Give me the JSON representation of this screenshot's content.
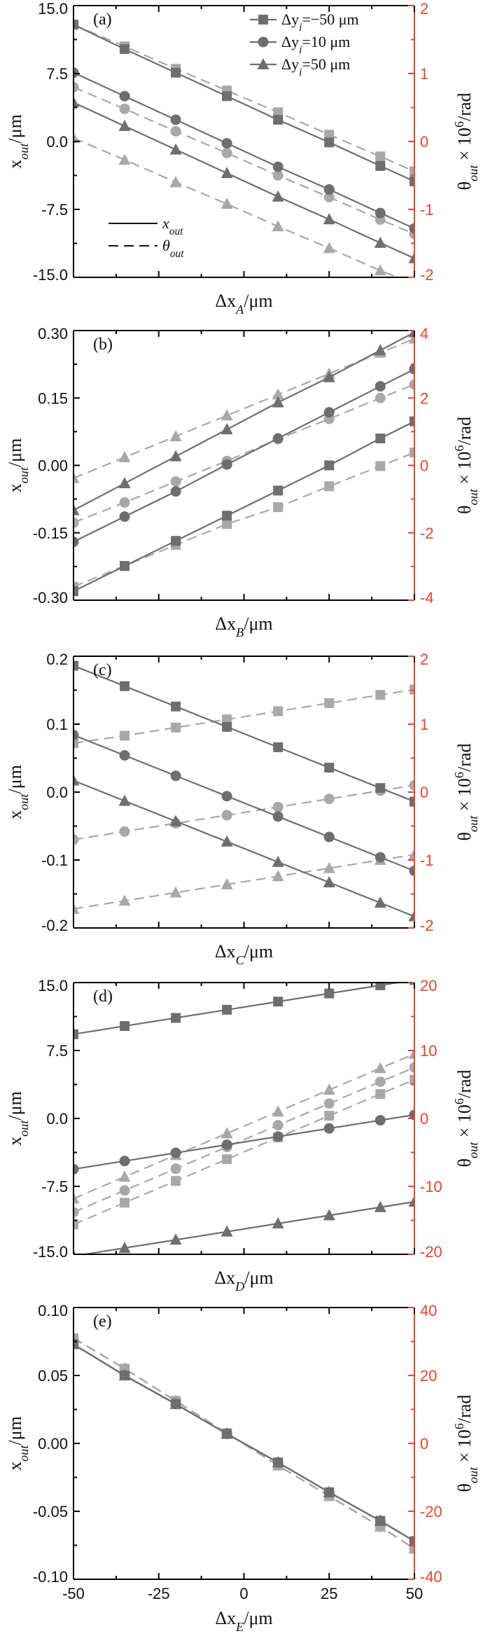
{
  "colors": {
    "x_series": "#6e6e6e",
    "theta_series": "#a8a8a8",
    "left_axis": "#000000",
    "right_axis": "#e8442c"
  },
  "legend": {
    "series": [
      {
        "marker": "square",
        "label": "Δy_i=−50 μm"
      },
      {
        "marker": "circle",
        "label": "Δy_i=10 μm"
      },
      {
        "marker": "triangle",
        "label": "Δy_i=50 μm"
      }
    ],
    "styles": [
      {
        "line": "solid",
        "label": "x_out"
      },
      {
        "line": "dashed",
        "label": "θ_out"
      }
    ]
  },
  "chart_data": [
    {
      "type": "line",
      "panel_label": "(a)",
      "xlabel": "Δx_A/μm",
      "ylabel": "x_out/μm",
      "y2label": "θ_out × 10^6/rad",
      "xlim": [
        -50,
        50
      ],
      "ylim": [
        -15,
        15
      ],
      "y2lim": [
        -2,
        2
      ],
      "yticks": [
        "-15.0",
        "-7.5",
        "0.0",
        "7.5",
        "15.0"
      ],
      "y2ticks": [
        "-2",
        "-1",
        "0",
        "1",
        "2"
      ],
      "xticks": [],
      "x": [
        -50,
        -35,
        -20,
        -5,
        10,
        25,
        40,
        50
      ],
      "series": [
        {
          "name": "Δy_i=−50 μm",
          "marker": "square",
          "x_out": [
            12.9,
            10.2,
            7.6,
            5.0,
            2.4,
            -0.1,
            -2.7,
            -4.4
          ],
          "theta_out": [
            1.72,
            1.4,
            1.07,
            0.75,
            0.43,
            0.1,
            -0.22,
            -0.44
          ]
        },
        {
          "name": "Δy_i=10 μm",
          "marker": "circle",
          "x_out": [
            7.6,
            5.0,
            2.4,
            -0.2,
            -2.8,
            -5.3,
            -7.9,
            -9.6
          ],
          "theta_out": [
            0.8,
            0.48,
            0.15,
            -0.17,
            -0.5,
            -0.82,
            -1.15,
            -1.36
          ]
        },
        {
          "name": "Δy_i=50 μm",
          "marker": "triangle",
          "x_out": [
            4.3,
            1.7,
            -0.9,
            -3.5,
            -6.1,
            -8.6,
            -11.2,
            -12.9
          ],
          "theta_out": [
            0.05,
            -0.27,
            -0.6,
            -0.92,
            -1.25,
            -1.57,
            -1.9,
            -2.1
          ]
        }
      ]
    },
    {
      "type": "line",
      "panel_label": "(b)",
      "xlabel": "Δx_B/μm",
      "ylabel": "x_out/μm",
      "y2label": "θ_out × 10^6/rad",
      "xlim": [
        -50,
        50
      ],
      "ylim": [
        -0.3,
        0.3
      ],
      "y2lim": [
        -4,
        4
      ],
      "yticks": [
        "-0.30",
        "-0.15",
        "0.00",
        "0.15",
        "0.30"
      ],
      "y2ticks": [
        "-4",
        "-2",
        "0",
        "2",
        "4"
      ],
      "xticks": [],
      "x": [
        -50,
        -35,
        -20,
        -5,
        10,
        25,
        40,
        50
      ],
      "series": [
        {
          "name": "Δy_i=−50 μm",
          "marker": "square",
          "x_out": [
            -0.28,
            -0.224,
            -0.168,
            -0.112,
            -0.056,
            0.0,
            0.06,
            0.098
          ],
          "theta_out": [
            -3.6,
            -2.98,
            -2.36,
            -1.74,
            -1.24,
            -0.62,
            -0.02,
            0.38
          ]
        },
        {
          "name": "Δy_i=10 μm",
          "marker": "circle",
          "x_out": [
            -0.17,
            -0.114,
            -0.058,
            0.002,
            0.06,
            0.118,
            0.176,
            0.214
          ],
          "theta_out": [
            -1.7,
            -1.1,
            -0.48,
            0.13,
            0.78,
            1.38,
            2.0,
            2.4
          ]
        },
        {
          "name": "Δy_i=50 μm",
          "marker": "triangle",
          "x_out": [
            -0.1,
            -0.04,
            0.02,
            0.08,
            0.14,
            0.196,
            0.256,
            0.296
          ],
          "theta_out": [
            -0.38,
            0.24,
            0.86,
            1.48,
            2.1,
            2.72,
            3.34,
            3.76
          ]
        }
      ]
    },
    {
      "type": "line",
      "panel_label": "(c)",
      "xlabel": "Δx_C/μm",
      "ylabel": "x_out/μm",
      "y2label": "θ_out × 10^6/rad",
      "xlim": [
        -50,
        50
      ],
      "ylim": [
        -0.2,
        0.2
      ],
      "y2lim": [
        -2,
        2
      ],
      "yticks": [
        "-0.2",
        "-0.1",
        "0.0",
        "0.1",
        "0.2"
      ],
      "y2ticks": [
        "-2",
        "-1",
        "0",
        "1",
        "2"
      ],
      "xticks": [],
      "x": [
        -50,
        -35,
        -20,
        -5,
        10,
        25,
        40,
        50
      ],
      "series": [
        {
          "name": "Δy_i=−50 μm",
          "marker": "square",
          "x_out": [
            0.186,
            0.156,
            0.126,
            0.096,
            0.066,
            0.036,
            0.006,
            -0.014
          ],
          "theta_out": [
            0.72,
            0.83,
            0.95,
            1.07,
            1.19,
            1.31,
            1.43,
            1.51
          ]
        },
        {
          "name": "Δy_i=10 μm",
          "marker": "circle",
          "x_out": [
            0.084,
            0.054,
            0.024,
            -0.006,
            -0.036,
            -0.066,
            -0.096,
            -0.116
          ],
          "theta_out": [
            -0.7,
            -0.58,
            -0.46,
            -0.34,
            -0.22,
            -0.1,
            0.02,
            0.1
          ]
        },
        {
          "name": "Δy_i=50 μm",
          "marker": "triangle",
          "x_out": [
            0.017,
            -0.013,
            -0.043,
            -0.073,
            -0.103,
            -0.133,
            -0.163,
            -0.183
          ],
          "theta_out": [
            -1.72,
            -1.6,
            -1.48,
            -1.36,
            -1.24,
            -1.12,
            -1.0,
            -0.92
          ]
        }
      ]
    },
    {
      "type": "line",
      "panel_label": "(d)",
      "xlabel": "Δx_D/μm",
      "ylabel": "x_out/μm",
      "y2label": "θ_out × 10^6/rad",
      "xlim": [
        -50,
        50
      ],
      "ylim": [
        -15,
        15
      ],
      "y2lim": [
        -20,
        20
      ],
      "yticks": [
        "-15.0",
        "-7.5",
        "0.0",
        "7.5",
        "15.0"
      ],
      "y2ticks": [
        "-20",
        "-10",
        "0",
        "10",
        "20"
      ],
      "xticks": [],
      "x": [
        -50,
        -35,
        -20,
        -5,
        10,
        25,
        40,
        50
      ],
      "series": [
        {
          "name": "Δy_i=−50 μm",
          "marker": "square",
          "x_out": [
            9.3,
            10.2,
            11.1,
            12.0,
            12.9,
            13.8,
            14.7,
            15.3
          ],
          "theta_out": [
            -15.6,
            -12.4,
            -9.2,
            -6.0,
            -2.8,
            0.4,
            3.6,
            5.7
          ]
        },
        {
          "name": "Δy_i=10 μm",
          "marker": "circle",
          "x_out": [
            -5.6,
            -4.7,
            -3.8,
            -2.9,
            -2.0,
            -1.1,
            -0.2,
            0.4
          ],
          "theta_out": [
            -13.8,
            -10.6,
            -7.4,
            -4.2,
            -1.0,
            2.2,
            5.4,
            7.5
          ]
        },
        {
          "name": "Δy_i=50 μm",
          "marker": "triangle",
          "x_out": [
            -15.2,
            -14.3,
            -13.4,
            -12.5,
            -11.6,
            -10.7,
            -9.8,
            -9.2
          ],
          "theta_out": [
            -11.8,
            -8.6,
            -5.4,
            -2.2,
            1.0,
            4.2,
            7.4,
            9.5
          ]
        }
      ]
    },
    {
      "type": "line",
      "panel_label": "(e)",
      "xlabel": "Δx_E/μm",
      "ylabel": "x_out/μm",
      "y2label": "θ_out × 10^6/rad",
      "xlim": [
        -50,
        50
      ],
      "ylim": [
        -0.1,
        0.1
      ],
      "y2lim": [
        -40,
        40
      ],
      "yticks": [
        "-0.10",
        "-0.05",
        "0.00",
        "0.05",
        "0.10"
      ],
      "y2ticks": [
        "-40",
        "-20",
        "0",
        "20",
        "40"
      ],
      "xticks": [
        "-50",
        "-25",
        "0",
        "25",
        "50"
      ],
      "x": [
        -50,
        -35,
        -20,
        -5,
        10,
        25,
        40,
        50
      ],
      "series": [
        {
          "name": "Δy_i=−50 μm",
          "marker": "square",
          "x_out": [
            0.073,
            0.05,
            0.029,
            0.007,
            -0.014,
            -0.036,
            -0.057,
            -0.072
          ],
          "theta_out": [
            31.0,
            22.0,
            12.5,
            3.0,
            -6.5,
            -15.5,
            -24.5,
            -31.0
          ]
        },
        {
          "name": "Δy_i=10 μm",
          "marker": "circle",
          "x_out": [
            0.073,
            0.05,
            0.029,
            0.007,
            -0.014,
            -0.036,
            -0.057,
            -0.072
          ],
          "theta_out": [
            31.0,
            22.0,
            12.5,
            3.0,
            -6.5,
            -15.5,
            -24.5,
            -31.0
          ]
        },
        {
          "name": "Δy_i=50 μm",
          "marker": "triangle",
          "x_out": [
            0.073,
            0.05,
            0.029,
            0.007,
            -0.014,
            -0.036,
            -0.057,
            -0.072
          ],
          "theta_out": [
            31.0,
            22.0,
            12.5,
            3.0,
            -6.5,
            -15.5,
            -24.5,
            -31.0
          ]
        }
      ]
    }
  ]
}
